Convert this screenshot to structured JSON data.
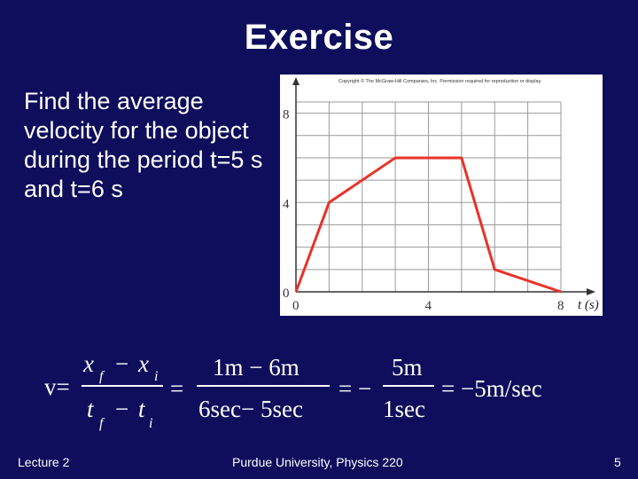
{
  "slide": {
    "title": "Exercise",
    "question": "Find the average velocity for the object during the period t=5 s and t=6 s",
    "footer_left": "Lecture 2",
    "footer_center": "Purdue University, Physics 220",
    "page_number": "5"
  },
  "chart_data": {
    "type": "line",
    "copyright": "Copyright © The McGraw-Hill Companies, Inc. Permission required for reproduction or display.",
    "x": [
      0,
      1,
      3,
      5,
      6,
      8
    ],
    "y": [
      0,
      4,
      6,
      6,
      1,
      0
    ],
    "xlabel": "t (s)",
    "ylabel": "",
    "x_ticks": [
      0,
      4,
      8
    ],
    "y_ticks": [
      0,
      4,
      8
    ],
    "xlim": [
      0,
      8
    ],
    "ylim": [
      0,
      8.5
    ],
    "grid": true,
    "line_color": "#e8322a"
  },
  "equation": {
    "v_label": "v=",
    "xf": "x",
    "xf_sub": "f",
    "minus": "−",
    "xi": "x",
    "xi_sub": "i",
    "tf": "t",
    "tf_sub": "f",
    "ti": "t",
    "ti_sub": "i",
    "eq1": "=",
    "num2": "1m − 6m",
    "den2": "6sec− 5sec",
    "eq2": "= −",
    "num3": "5m",
    "den3": "1sec",
    "result": "= −5m/sec"
  }
}
